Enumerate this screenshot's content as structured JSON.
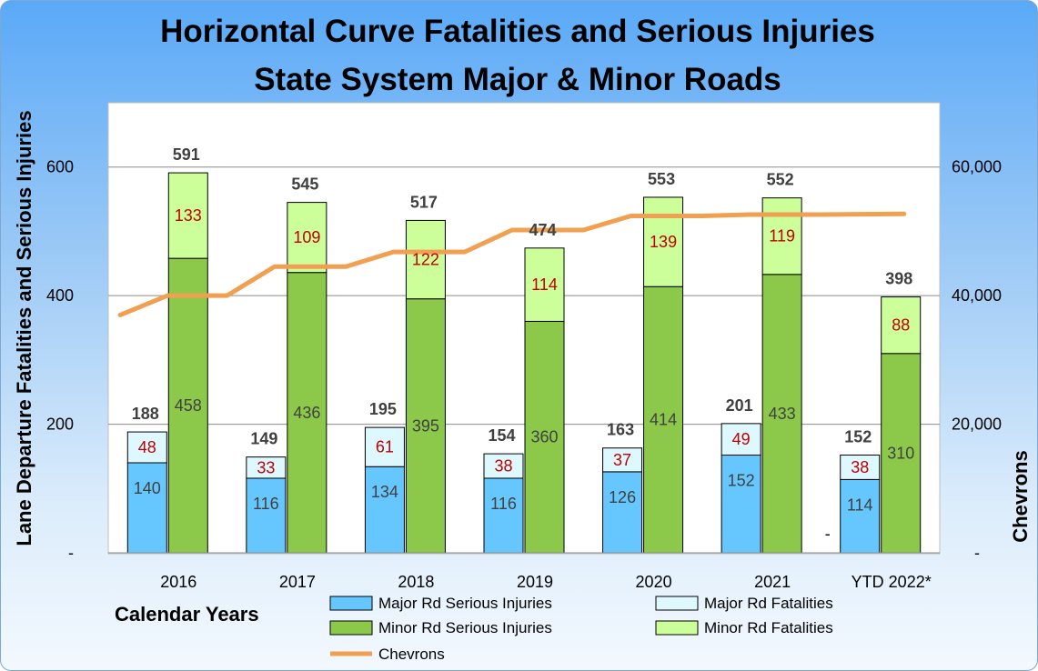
{
  "chart_data": {
    "type": "bar",
    "title_line1": "Horizontal Curve Fatalities and Serious Injuries",
    "title_line2": "State System Major & Minor Roads",
    "xlabel": "Calendar Years",
    "ylabel": "Lane Departure Fatalities and Serious Injuries",
    "y2label": "Chevrons",
    "categories": [
      "2016",
      "2017",
      "2018",
      "2019",
      "2020",
      "2021",
      "YTD 2022*"
    ],
    "ylim": [
      0,
      700
    ],
    "y2lim": [
      0,
      70000
    ],
    "yticks": [
      "-",
      "200",
      "400",
      "600"
    ],
    "y2ticks": [
      "-",
      "20,000",
      "40,000",
      "60,000"
    ],
    "grid": true,
    "legend_position": "bottom",
    "groups": [
      {
        "stack": "major",
        "series": [
          {
            "name": "Major Rd Serious Injuries",
            "color": "#66c7ff",
            "values": [
              140,
              116,
              134,
              116,
              126,
              152,
              114
            ]
          },
          {
            "name": "Major Rd Fatalities",
            "color": "#ddf9ff",
            "values": [
              48,
              33,
              61,
              38,
              37,
              49,
              38
            ]
          }
        ],
        "totals": [
          188,
          149,
          195,
          154,
          163,
          201,
          152
        ]
      },
      {
        "stack": "minor",
        "series": [
          {
            "name": "Minor Rd Serious Injuries",
            "color": "#8cc94a",
            "values": [
              458,
              436,
              395,
              360,
              414,
              433,
              310
            ]
          },
          {
            "name": "Minor Rd Fatalities",
            "color": "#ccff99",
            "values": [
              133,
              109,
              122,
              114,
              139,
              119,
              88
            ]
          }
        ],
        "totals": [
          591,
          545,
          517,
          474,
          553,
          552,
          398
        ]
      }
    ],
    "line_series": {
      "name": "Chevrons",
      "color": "#f0a050",
      "x": [
        2015.6,
        2016.0,
        2016.5,
        2016.9,
        2017.5,
        2017.9,
        2018.5,
        2018.9,
        2019.5,
        2019.9,
        2020.5,
        2020.9,
        2021.5,
        2022.2
      ],
      "values": [
        37000,
        40000,
        40000,
        44500,
        44500,
        46800,
        46800,
        50200,
        50200,
        52400,
        52400,
        52600,
        52600,
        52700
      ]
    },
    "stray_label": "-"
  }
}
